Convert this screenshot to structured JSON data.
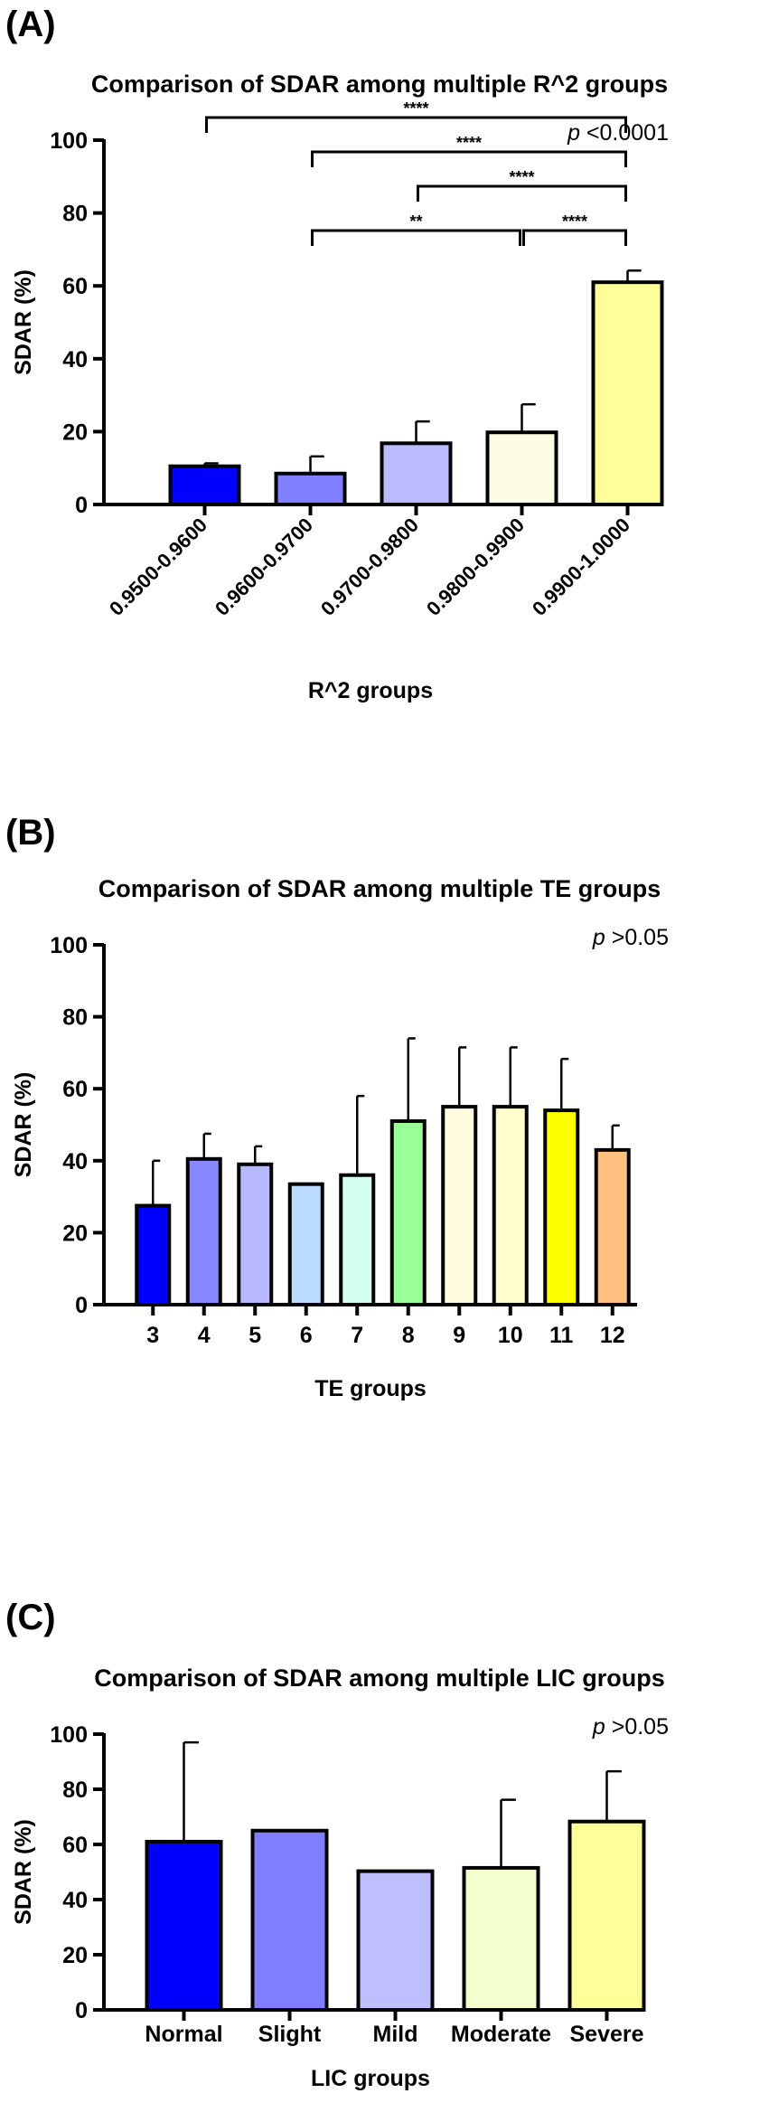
{
  "chart_data": [
    {
      "type": "bar",
      "panel_label": "(A)",
      "title": "Comparison of SDAR among multiple R^2 groups",
      "xlabel": "R^2 groups",
      "ylabel": "SDAR (%)",
      "ylim": [
        0,
        100
      ],
      "yticks": [
        0,
        20,
        40,
        60,
        80,
        100
      ],
      "grid": false,
      "categories": [
        "0.9500-0.9600",
        "0.9600-0.9700",
        "0.9700-0.9800",
        "0.9800-0.9900",
        "0.9900-1.0000"
      ],
      "values": [
        10.5,
        8.5,
        16.8,
        19.8,
        61
      ],
      "errors": [
        0.8,
        4.7,
        6,
        7.7,
        3.2
      ],
      "colors": [
        "#0000ff",
        "#7f7fff",
        "#bbbbff",
        "#fdfde6",
        "#ffff99"
      ],
      "p_prefix": "p",
      "p_value": "<0.0001",
      "significance": [
        {
          "from": 0,
          "to": 4,
          "label": "****"
        },
        {
          "from": 1,
          "to": 4,
          "label": "****"
        },
        {
          "from": 2,
          "to": 4,
          "label": "****"
        },
        {
          "from": 1,
          "to": 3,
          "label": "**"
        },
        {
          "from": 3,
          "to": 4,
          "label": "****"
        }
      ]
    },
    {
      "type": "bar",
      "panel_label": "(B)",
      "title": "Comparison of SDAR among multiple TE groups",
      "xlabel": "TE groups",
      "ylabel": "SDAR (%)",
      "ylim": [
        0,
        100
      ],
      "yticks": [
        0,
        20,
        40,
        60,
        80,
        100
      ],
      "grid": false,
      "categories": [
        "3",
        "4",
        "5",
        "6",
        "7",
        "8",
        "9",
        "10",
        "11",
        "12"
      ],
      "values": [
        27.5,
        40.5,
        39,
        33.5,
        36,
        51,
        55,
        55,
        54,
        43
      ],
      "errors": [
        12.5,
        7,
        5,
        0,
        22,
        23,
        16.5,
        16.5,
        14.3,
        6.8
      ],
      "colors": [
        "#0000ff",
        "#8888ff",
        "#b9b9ff",
        "#bcdcff",
        "#d2fff0",
        "#99ff99",
        "#fffbe0",
        "#ffffcc",
        "#ffff00",
        "#ffc080"
      ],
      "p_prefix": "p",
      "p_value": ">0.05"
    },
    {
      "type": "bar",
      "panel_label": "(C)",
      "title": "Comparison of SDAR among multiple LIC groups",
      "xlabel": "LIC groups",
      "ylabel": "SDAR (%)",
      "ylim": [
        0,
        100
      ],
      "yticks": [
        0,
        20,
        40,
        60,
        80,
        100
      ],
      "grid": false,
      "categories": [
        "Normal",
        "Slight",
        "Mild",
        "Moderate",
        "Severe"
      ],
      "values": [
        61,
        65,
        50.3,
        51.5,
        68.3
      ],
      "errors": [
        36,
        0,
        0,
        24.7,
        18.2
      ],
      "colors": [
        "#0000ff",
        "#7f7fff",
        "#bfbfff",
        "#f3ffcc",
        "#ffff99"
      ],
      "p_prefix": "p",
      "p_value": ">0.05"
    }
  ]
}
